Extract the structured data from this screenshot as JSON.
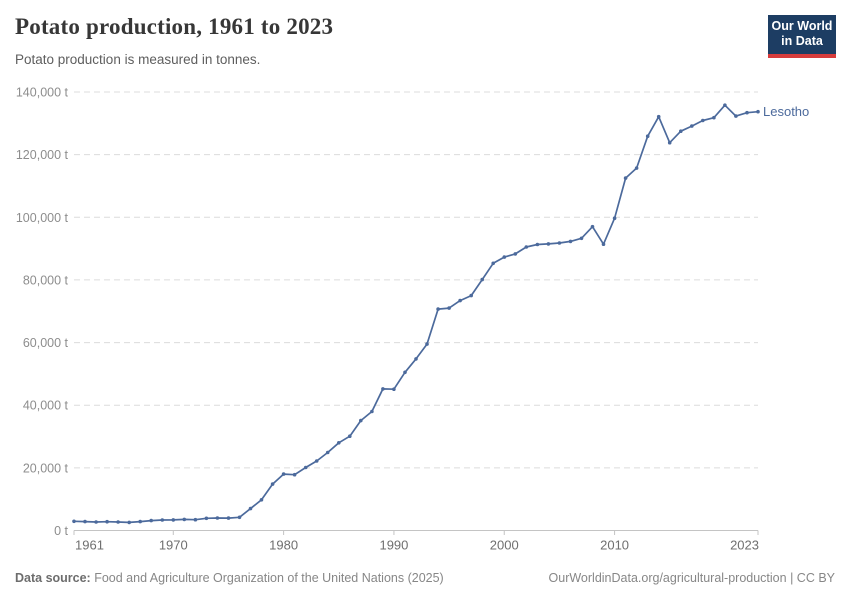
{
  "header": {
    "title": "Potato production, 1961 to 2023",
    "subtitle": "Potato production is measured in tonnes."
  },
  "logo": {
    "line1": "Our World",
    "line2": "in Data",
    "bg_color": "#1d3d63",
    "accent_color": "#d73c3c"
  },
  "chart_data": {
    "type": "line",
    "title": "Potato production, 1961 to 2023",
    "unit": "t",
    "ylim": [
      0,
      140000
    ],
    "ytick_step": 20000,
    "xticks": [
      1961,
      1970,
      1980,
      1990,
      2000,
      2010,
      2023
    ],
    "grid": "horizontal-dashed",
    "legend": "end-of-line-label",
    "x": [
      1961,
      1962,
      1963,
      1964,
      1965,
      1966,
      1967,
      1968,
      1969,
      1970,
      1971,
      1972,
      1973,
      1974,
      1975,
      1976,
      1977,
      1978,
      1979,
      1980,
      1981,
      1982,
      1983,
      1984,
      1985,
      1986,
      1987,
      1988,
      1989,
      1990,
      1991,
      1992,
      1993,
      1994,
      1995,
      1996,
      1997,
      1998,
      1999,
      2000,
      2001,
      2002,
      2003,
      2004,
      2005,
      2006,
      2007,
      2008,
      2009,
      2010,
      2011,
      2012,
      2013,
      2014,
      2015,
      2016,
      2017,
      2018,
      2019,
      2020,
      2021,
      2022,
      2023
    ],
    "series": [
      {
        "name": "Lesotho",
        "color": "#4c6a9c",
        "values": [
          2950,
          2850,
          2700,
          2800,
          2700,
          2600,
          2850,
          3150,
          3350,
          3400,
          3550,
          3450,
          3900,
          4000,
          3950,
          4200,
          7000,
          9800,
          14800,
          18000,
          17800,
          20100,
          22200,
          24900,
          28000,
          30100,
          35100,
          38000,
          45200,
          45100,
          50500,
          54800,
          59500,
          70700,
          71000,
          73400,
          75000,
          80100,
          85300,
          87300,
          88300,
          90500,
          91300,
          91500,
          91800,
          92300,
          93300,
          97000,
          91400,
          99700,
          112500,
          115700,
          125900,
          132100,
          123800,
          127500,
          129100,
          130900,
          131800,
          135800,
          132300,
          133400,
          133700
        ]
      }
    ]
  },
  "footer": {
    "source_label": "Data source:",
    "source_text": " Food and Agriculture Organization of the United Nations (2025)",
    "url": "OurWorldinData.org/agricultural-production",
    "separator": " | ",
    "license": "CC BY"
  },
  "colors": {
    "gridline": "#dcdcdc",
    "axis": "#c4c4c4",
    "y_label": "#8d8d8d",
    "x_label": "#6f6f6f"
  }
}
